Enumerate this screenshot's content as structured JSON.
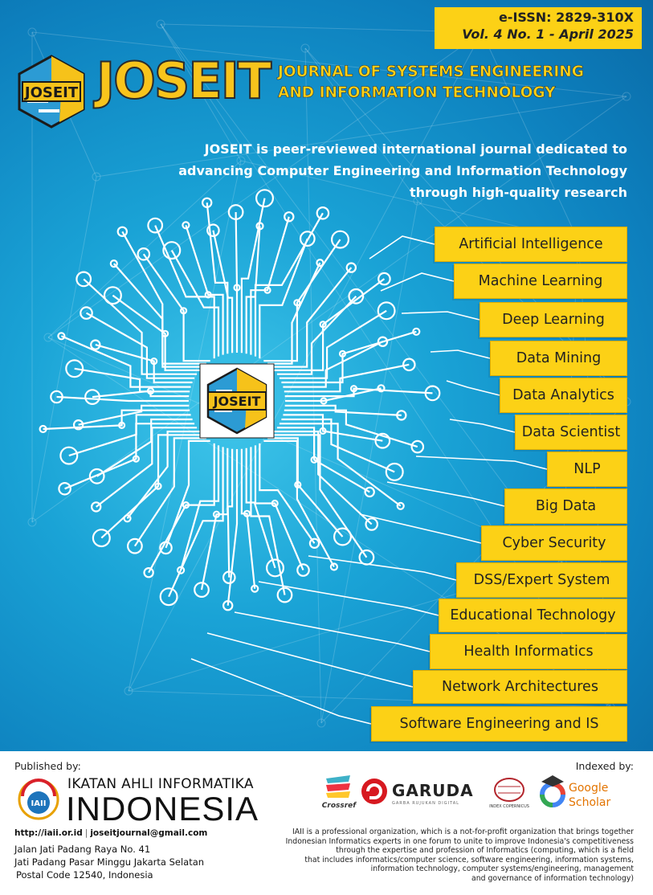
{
  "header": {
    "issn": "e-ISSN: 2829-310X",
    "volume": "Vol. 4 No. 1 - April 2025"
  },
  "brand": {
    "logo_text": "JOSEIT",
    "title": "JOSEIT",
    "journal_line1": "JOURNAL OF SYSTEMS ENGINEERING",
    "journal_line2": "AND INFORMATION TECHNOLOGY",
    "center_logo_text": "JOSEIT"
  },
  "tagline": {
    "line1": "JOSEIT is peer-reviewed international journal dedicated to",
    "line2": "advancing Computer Engineering and Information Technology",
    "line3": "through high-quality research"
  },
  "topics": [
    "Artificial Intelligence",
    "Machine Learning",
    "Deep Learning",
    "Data Mining",
    "Data Analytics",
    "Data Scientist",
    "NLP",
    "Big Data",
    "Cyber Security",
    "DSS/Expert System",
    "Educational Technology",
    "Health Informatics",
    "Network Architectures",
    "Software Engineering and IS"
  ],
  "footer": {
    "published_by": "Published by:",
    "indexed_by": "Indexed by:",
    "org_line1": "IKATAN AHLI INFORMATIKA",
    "org_line2": "INDONESIA",
    "org_logo_text": "IAII",
    "website": "http://iaii.or.id",
    "email": "joseitjournal@gmail.com",
    "address_line1": "Jalan Jati Padang Raya No. 41",
    "address_line2": "Jati Padang Pasar Minggu Jakarta Selatan",
    "address_line3": "Postal Code 12540, Indonesia",
    "description": [
      "IAII is a professional organization, which is a not-for-profit organization that brings together",
      "Indonesian Informatics experts in one forum to unite to improve Indonesia's competitiveness",
      "through the expertise and profession of Informatics (computing, which is a field",
      "that includes informatics/computer science, software engineering, information systems,",
      "information technology, computer systems/engineering, management",
      "and governance of information technology)"
    ],
    "indexers": {
      "crossref": "Crossref",
      "garuda": "GARUDA",
      "garuda_sub": "GARBA RUJUKAN DIGITAL",
      "index_copernicus": "INDEX COPERNICUS",
      "google_scholar_1": "Google",
      "google_scholar_2": "Scholar"
    }
  },
  "colors": {
    "accent_yellow": "#fcd116",
    "cover_blue": "#1aa3d6",
    "text_dark": "#222222"
  }
}
